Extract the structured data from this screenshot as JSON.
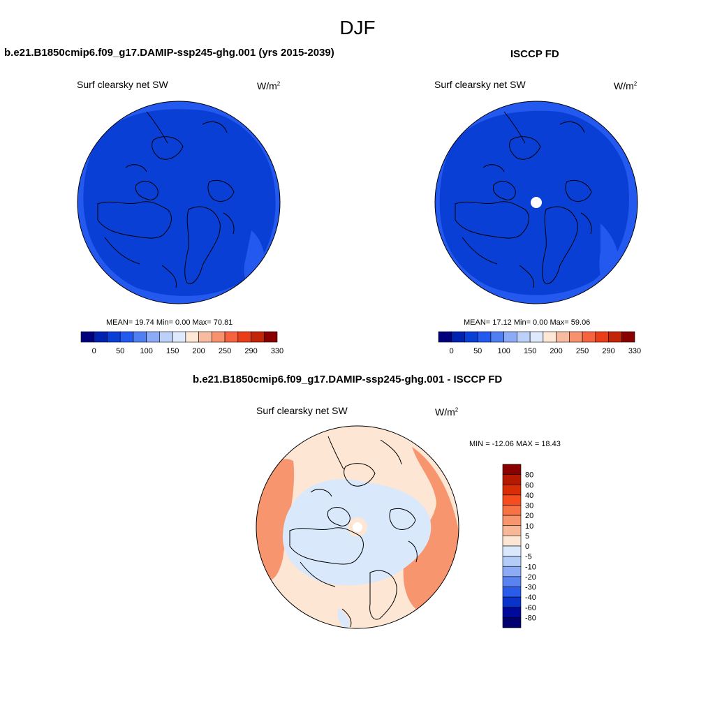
{
  "season": "DJF",
  "panels": [
    {
      "title": "b.e21.B1850cmip6.f09_g17.DAMIP-ssp245-ghg.001 (yrs 2015-2039)",
      "variable": "Surf clearsky net SW",
      "units_base": "W/m",
      "units_exp": "2",
      "stats": "MEAN=  19.74  Min=    0.00  Max=  70.81",
      "colorbar_ticks": [
        "0",
        "50",
        "100",
        "150",
        "200",
        "250",
        "290",
        "330"
      ]
    },
    {
      "title": "ISCCP FD",
      "variable": "Surf clearsky net SW",
      "units_base": "W/m",
      "units_exp": "2",
      "stats": "MEAN=  17.12  Min=    0.00  Max=  59.06",
      "colorbar_ticks": [
        "0",
        "50",
        "100",
        "150",
        "200",
        "250",
        "290",
        "330"
      ]
    },
    {
      "title": "b.e21.B1850cmip6.f09_g17.DAMIP-ssp245-ghg.001 - ISCCP FD",
      "variable": "Surf clearsky net SW",
      "units_base": "W/m",
      "units_exp": "2",
      "stats": "MIN = -12.06 MAX =  18.43",
      "colorbar_ticks": [
        "80",
        "60",
        "40",
        "30",
        "20",
        "10",
        "5",
        "0",
        "-5",
        "-10",
        "-20",
        "-30",
        "-40",
        "-60",
        "-80"
      ]
    }
  ],
  "colors": {
    "abs_scale": [
      "#00007d",
      "#0022b0",
      "#0a3fd6",
      "#2459f0",
      "#4f7ff2",
      "#8caaf5",
      "#bcd1fa",
      "#dfe9fd",
      "#fde7d5",
      "#f9bba0",
      "#f7916e",
      "#f5633f",
      "#eb3d17",
      "#c22508",
      "#8a0000"
    ],
    "diff_scale": [
      "#8a0000",
      "#b51a00",
      "#d92e05",
      "#f54d1d",
      "#f77245",
      "#f7956f",
      "#f8b898",
      "#fde6d4",
      "#dae8fb",
      "#b3cdf8",
      "#8daaf4",
      "#5a83f0",
      "#2a5cec",
      "#0a34c9",
      "#00099a",
      "#000070"
    ],
    "arctic_deep": "#0a3fd6",
    "arctic_mid": "#2459f0",
    "diff_pos": "#fde6d4",
    "diff_neg": "#dae8fb",
    "diff_hot": "#f7956f"
  }
}
